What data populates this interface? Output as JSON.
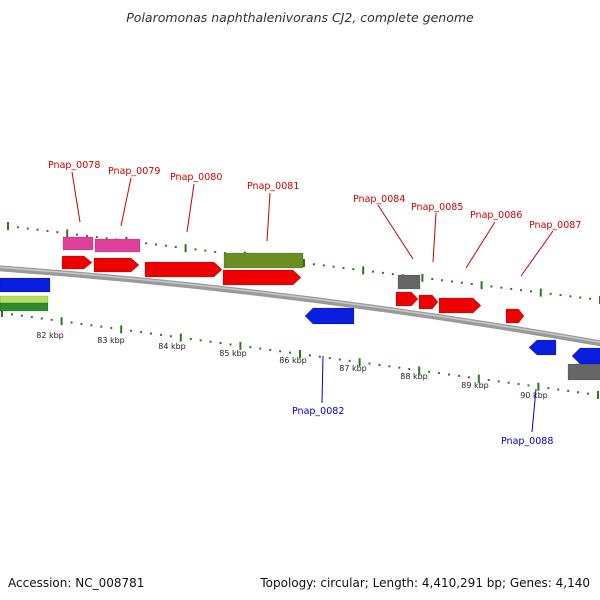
{
  "title": "Polaromonas naphthalenivorans CJ2, complete genome",
  "footer": {
    "accession": "Accession: NC_008781",
    "summary": "Topology: circular; Length: 4,410,291 bp; Genes: 4,140"
  },
  "colors": {
    "backbone": "#8a8a8a",
    "forward_label": "#cc0000",
    "reverse_label": "#0000cc",
    "tick": "#2a7a1a",
    "red_gene": "#ee0000",
    "blue_gene": "#0a1ee0",
    "pink_gene": "#e0409a",
    "olive_gene": "#6b8e23",
    "gray_gene": "#666666",
    "green_gene": "#2e8b2e"
  },
  "scale_labels": [
    "82 kbp",
    "83 kbp",
    "84 kbp",
    "85 kbp",
    "86 kbp",
    "87 kbp",
    "88 kbp",
    "89 kbp",
    "90 kbp"
  ],
  "gene_labels": [
    {
      "name": "Pnap_0078",
      "strand": "forward"
    },
    {
      "name": "Pnap_0079",
      "strand": "forward"
    },
    {
      "name": "Pnap_0080",
      "strand": "forward"
    },
    {
      "name": "Pnap_0081",
      "strand": "forward"
    },
    {
      "name": "Pnap_0084",
      "strand": "forward"
    },
    {
      "name": "Pnap_0085",
      "strand": "forward"
    },
    {
      "name": "Pnap_0086",
      "strand": "forward"
    },
    {
      "name": "Pnap_0087",
      "strand": "forward"
    },
    {
      "name": "Pnap_0082",
      "strand": "reverse"
    },
    {
      "name": "Pnap_0088",
      "strand": "reverse"
    }
  ]
}
